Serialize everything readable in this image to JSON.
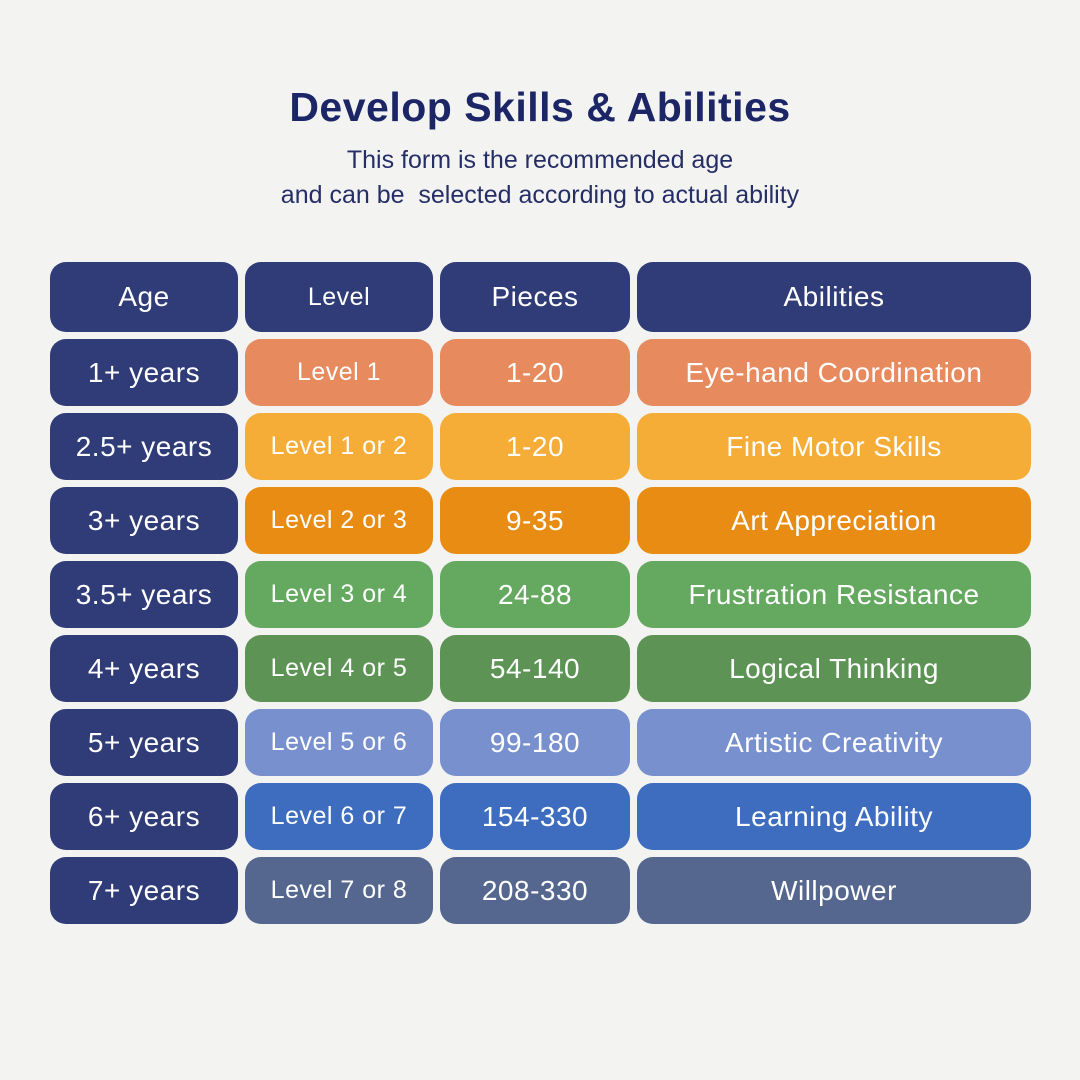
{
  "title": "Develop Skills & Abilities",
  "subtitle_line1": "This form is the recommended age",
  "subtitle_line2": "and can be  selected according to actual ability",
  "colors": {
    "background": "#f3f3f1",
    "navy": "#303c78",
    "title_text": "#1c2566",
    "cell_text": "#ffffff"
  },
  "table": {
    "headers": [
      "Age",
      "Level",
      "Pieces",
      "Abilities"
    ],
    "rows": [
      {
        "age": "1+ years",
        "level": "Level 1",
        "pieces": "1-20",
        "ability": "Eye-hand Coordination",
        "color": "#e78a5e"
      },
      {
        "age": "2.5+ years",
        "level": "Level 1 or 2",
        "pieces": "1-20",
        "ability": "Fine Motor Skills",
        "color": "#f5ad38"
      },
      {
        "age": "3+ years",
        "level": "Level 2 or 3",
        "pieces": "9-35",
        "ability": "Art Appreciation",
        "color": "#e88c13"
      },
      {
        "age": "3.5+ years",
        "level": "Level 3 or 4",
        "pieces": "24-88",
        "ability": "Frustration Resistance",
        "color": "#64a95f"
      },
      {
        "age": "4+ years",
        "level": "Level 4 or 5",
        "pieces": "54-140",
        "ability": "Logical Thinking",
        "color": "#5d9456"
      },
      {
        "age": "5+ years",
        "level": "Level 5 or 6",
        "pieces": "99-180",
        "ability": "Artistic Creativity",
        "color": "#7890cd"
      },
      {
        "age": "6+ years",
        "level": "Level 6 or 7",
        "pieces": "154-330",
        "ability": "Learning Ability",
        "color": "#3e6dc0"
      },
      {
        "age": "7+ years",
        "level": "Level 7 or 8",
        "pieces": "208-330",
        "ability": "Willpower",
        "color": "#55678e"
      }
    ]
  },
  "chart_data": {
    "type": "table",
    "title": "Develop Skills & Abilities",
    "columns": [
      "Age",
      "Level",
      "Pieces",
      "Abilities"
    ],
    "rows": [
      [
        "1+ years",
        "Level 1",
        "1-20",
        "Eye-hand Coordination"
      ],
      [
        "2.5+ years",
        "Level 1 or 2",
        "1-20",
        "Fine Motor Skills"
      ],
      [
        "3+ years",
        "Level 2 or 3",
        "9-35",
        "Art Appreciation"
      ],
      [
        "3.5+ years",
        "Level 3 or 4",
        "24-88",
        "Frustration Resistance"
      ],
      [
        "4+ years",
        "Level 4 or 5",
        "54-140",
        "Logical Thinking"
      ],
      [
        "5+ years",
        "Level 5 or 6",
        "99-180",
        "Artistic Creativity"
      ],
      [
        "6+ years",
        "Level 6 or 7",
        "154-330",
        "Learning Ability"
      ],
      [
        "7+ years",
        "Level 7 or 8",
        "208-330",
        "Willpower"
      ]
    ]
  }
}
